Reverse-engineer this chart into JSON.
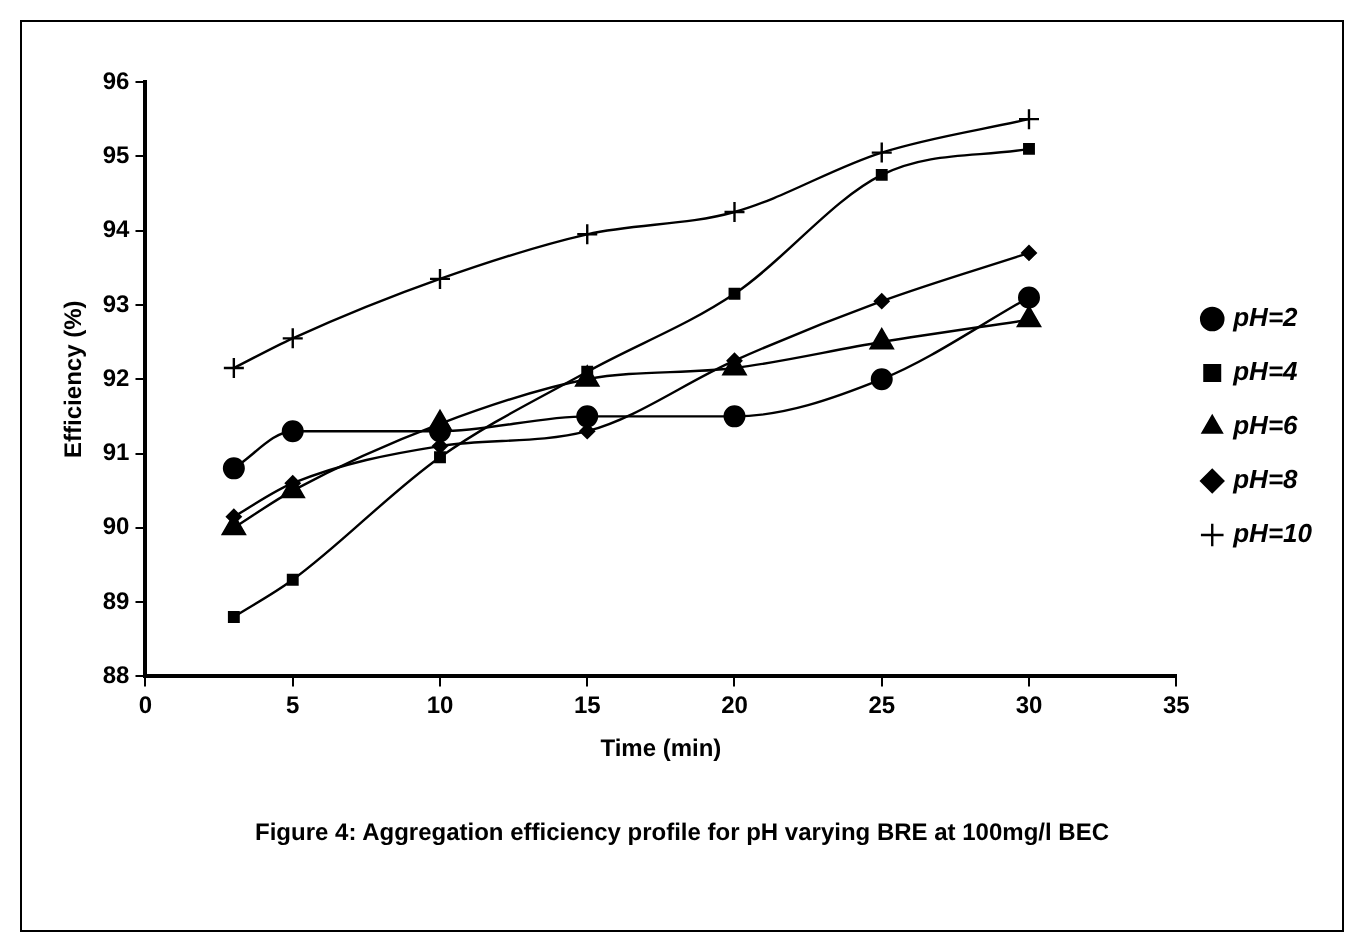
{
  "chart_data": {
    "type": "line",
    "xlabel": "Time (min)",
    "ylabel": "Efficiency (%)",
    "x": [
      3,
      5,
      10,
      15,
      20,
      25,
      30
    ],
    "xlim": [
      0,
      35
    ],
    "xticks": [
      0,
      5,
      10,
      15,
      20,
      25,
      30,
      35
    ],
    "ylim": [
      88,
      96
    ],
    "yticks": [
      88,
      89,
      90,
      91,
      92,
      93,
      94,
      95,
      96
    ],
    "grid": false,
    "legend": "right",
    "series": [
      {
        "name": "pH=2",
        "color": "#000000",
        "marker": "circle",
        "values": [
          90.8,
          91.3,
          91.3,
          91.5,
          91.5,
          92.0,
          93.1
        ]
      },
      {
        "name": "pH=4",
        "color": "#000000",
        "marker": "square",
        "values": [
          88.8,
          89.3,
          90.95,
          92.1,
          93.15,
          94.75,
          95.1
        ]
      },
      {
        "name": "pH=6",
        "color": "#000000",
        "marker": "triangle",
        "values": [
          90.0,
          90.5,
          91.4,
          92.0,
          92.15,
          92.5,
          92.8
        ]
      },
      {
        "name": "pH=8",
        "color": "#000000",
        "marker": "diamond",
        "values": [
          90.15,
          90.6,
          91.1,
          91.3,
          92.25,
          93.05,
          93.7
        ]
      },
      {
        "name": "pH=10",
        "color": "#000000",
        "marker": "cross",
        "values": [
          92.15,
          92.55,
          93.35,
          93.95,
          94.25,
          95.05,
          95.5
        ]
      }
    ],
    "annotations": [
      "Figure 4: Aggregation efficiency profile for pH varying BRE at 100mg/l BEC"
    ]
  }
}
